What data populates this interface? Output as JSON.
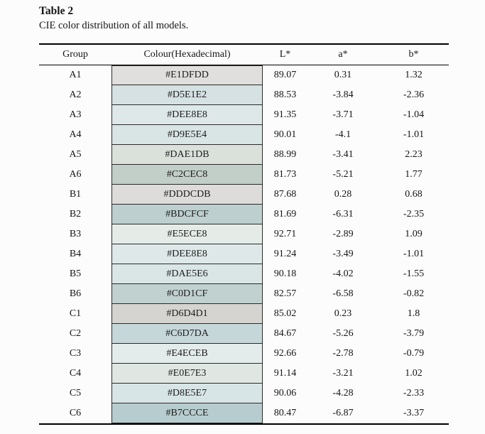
{
  "title": "Table 2",
  "caption": "CIE color distribution of all models.",
  "table": {
    "columns": {
      "group": "Group",
      "colour": "Colour(Hexadecimal)",
      "l": "L*",
      "a": "a*",
      "b": "b*"
    },
    "rows": [
      {
        "group": "A1",
        "hex": "#E1DFDD",
        "l": "89.07",
        "a": "0.31",
        "b": "1.32"
      },
      {
        "group": "A2",
        "hex": "#D5E1E2",
        "l": "88.53",
        "a": "-3.84",
        "b": "-2.36"
      },
      {
        "group": "A3",
        "hex": "#DEE8E8",
        "l": "91.35",
        "a": "-3.71",
        "b": "-1.04"
      },
      {
        "group": "A4",
        "hex": "#D9E5E4",
        "l": "90.01",
        "a": "-4.1",
        "b": "-1.01"
      },
      {
        "group": "A5",
        "hex": "#DAE1DB",
        "l": "88.99",
        "a": "-3.41",
        "b": "2.23"
      },
      {
        "group": "A6",
        "hex": "#C2CEC8",
        "l": "81.73",
        "a": "-5.21",
        "b": "1.77"
      },
      {
        "group": "B1",
        "hex": "#DDDCDB",
        "l": "87.68",
        "a": "0.28",
        "b": "0.68"
      },
      {
        "group": "B2",
        "hex": "#BDCFCF",
        "l": "81.69",
        "a": "-6.31",
        "b": "-2.35"
      },
      {
        "group": "B3",
        "hex": "#E5ECE8",
        "l": "92.71",
        "a": "-2.89",
        "b": "1.09"
      },
      {
        "group": "B4",
        "hex": "#DEE8E8",
        "l": "91.24",
        "a": "-3.49",
        "b": "-1.01"
      },
      {
        "group": "B5",
        "hex": "#DAE5E6",
        "l": "90.18",
        "a": "-4.02",
        "b": "-1.55"
      },
      {
        "group": "B6",
        "hex": "#C0D1CF",
        "l": "82.57",
        "a": "-6.58",
        "b": "-0.82"
      },
      {
        "group": "C1",
        "hex": "#D6D4D1",
        "l": "85.02",
        "a": "0.23",
        "b": "1.8"
      },
      {
        "group": "C2",
        "hex": "#C6D7DA",
        "l": "84.67",
        "a": "-5.26",
        "b": "-3.79"
      },
      {
        "group": "C3",
        "hex": "#E4ECEB",
        "l": "92.66",
        "a": "-2.78",
        "b": "-0.79"
      },
      {
        "group": "C4",
        "hex": "#E0E7E3",
        "l": "91.14",
        "a": "-3.21",
        "b": "1.02"
      },
      {
        "group": "C5",
        "hex": "#D8E5E7",
        "l": "90.06",
        "a": "-4.28",
        "b": "-2.33"
      },
      {
        "group": "C6",
        "hex": "#B7CCCE",
        "l": "80.47",
        "a": "-6.87",
        "b": "-3.37"
      }
    ]
  }
}
